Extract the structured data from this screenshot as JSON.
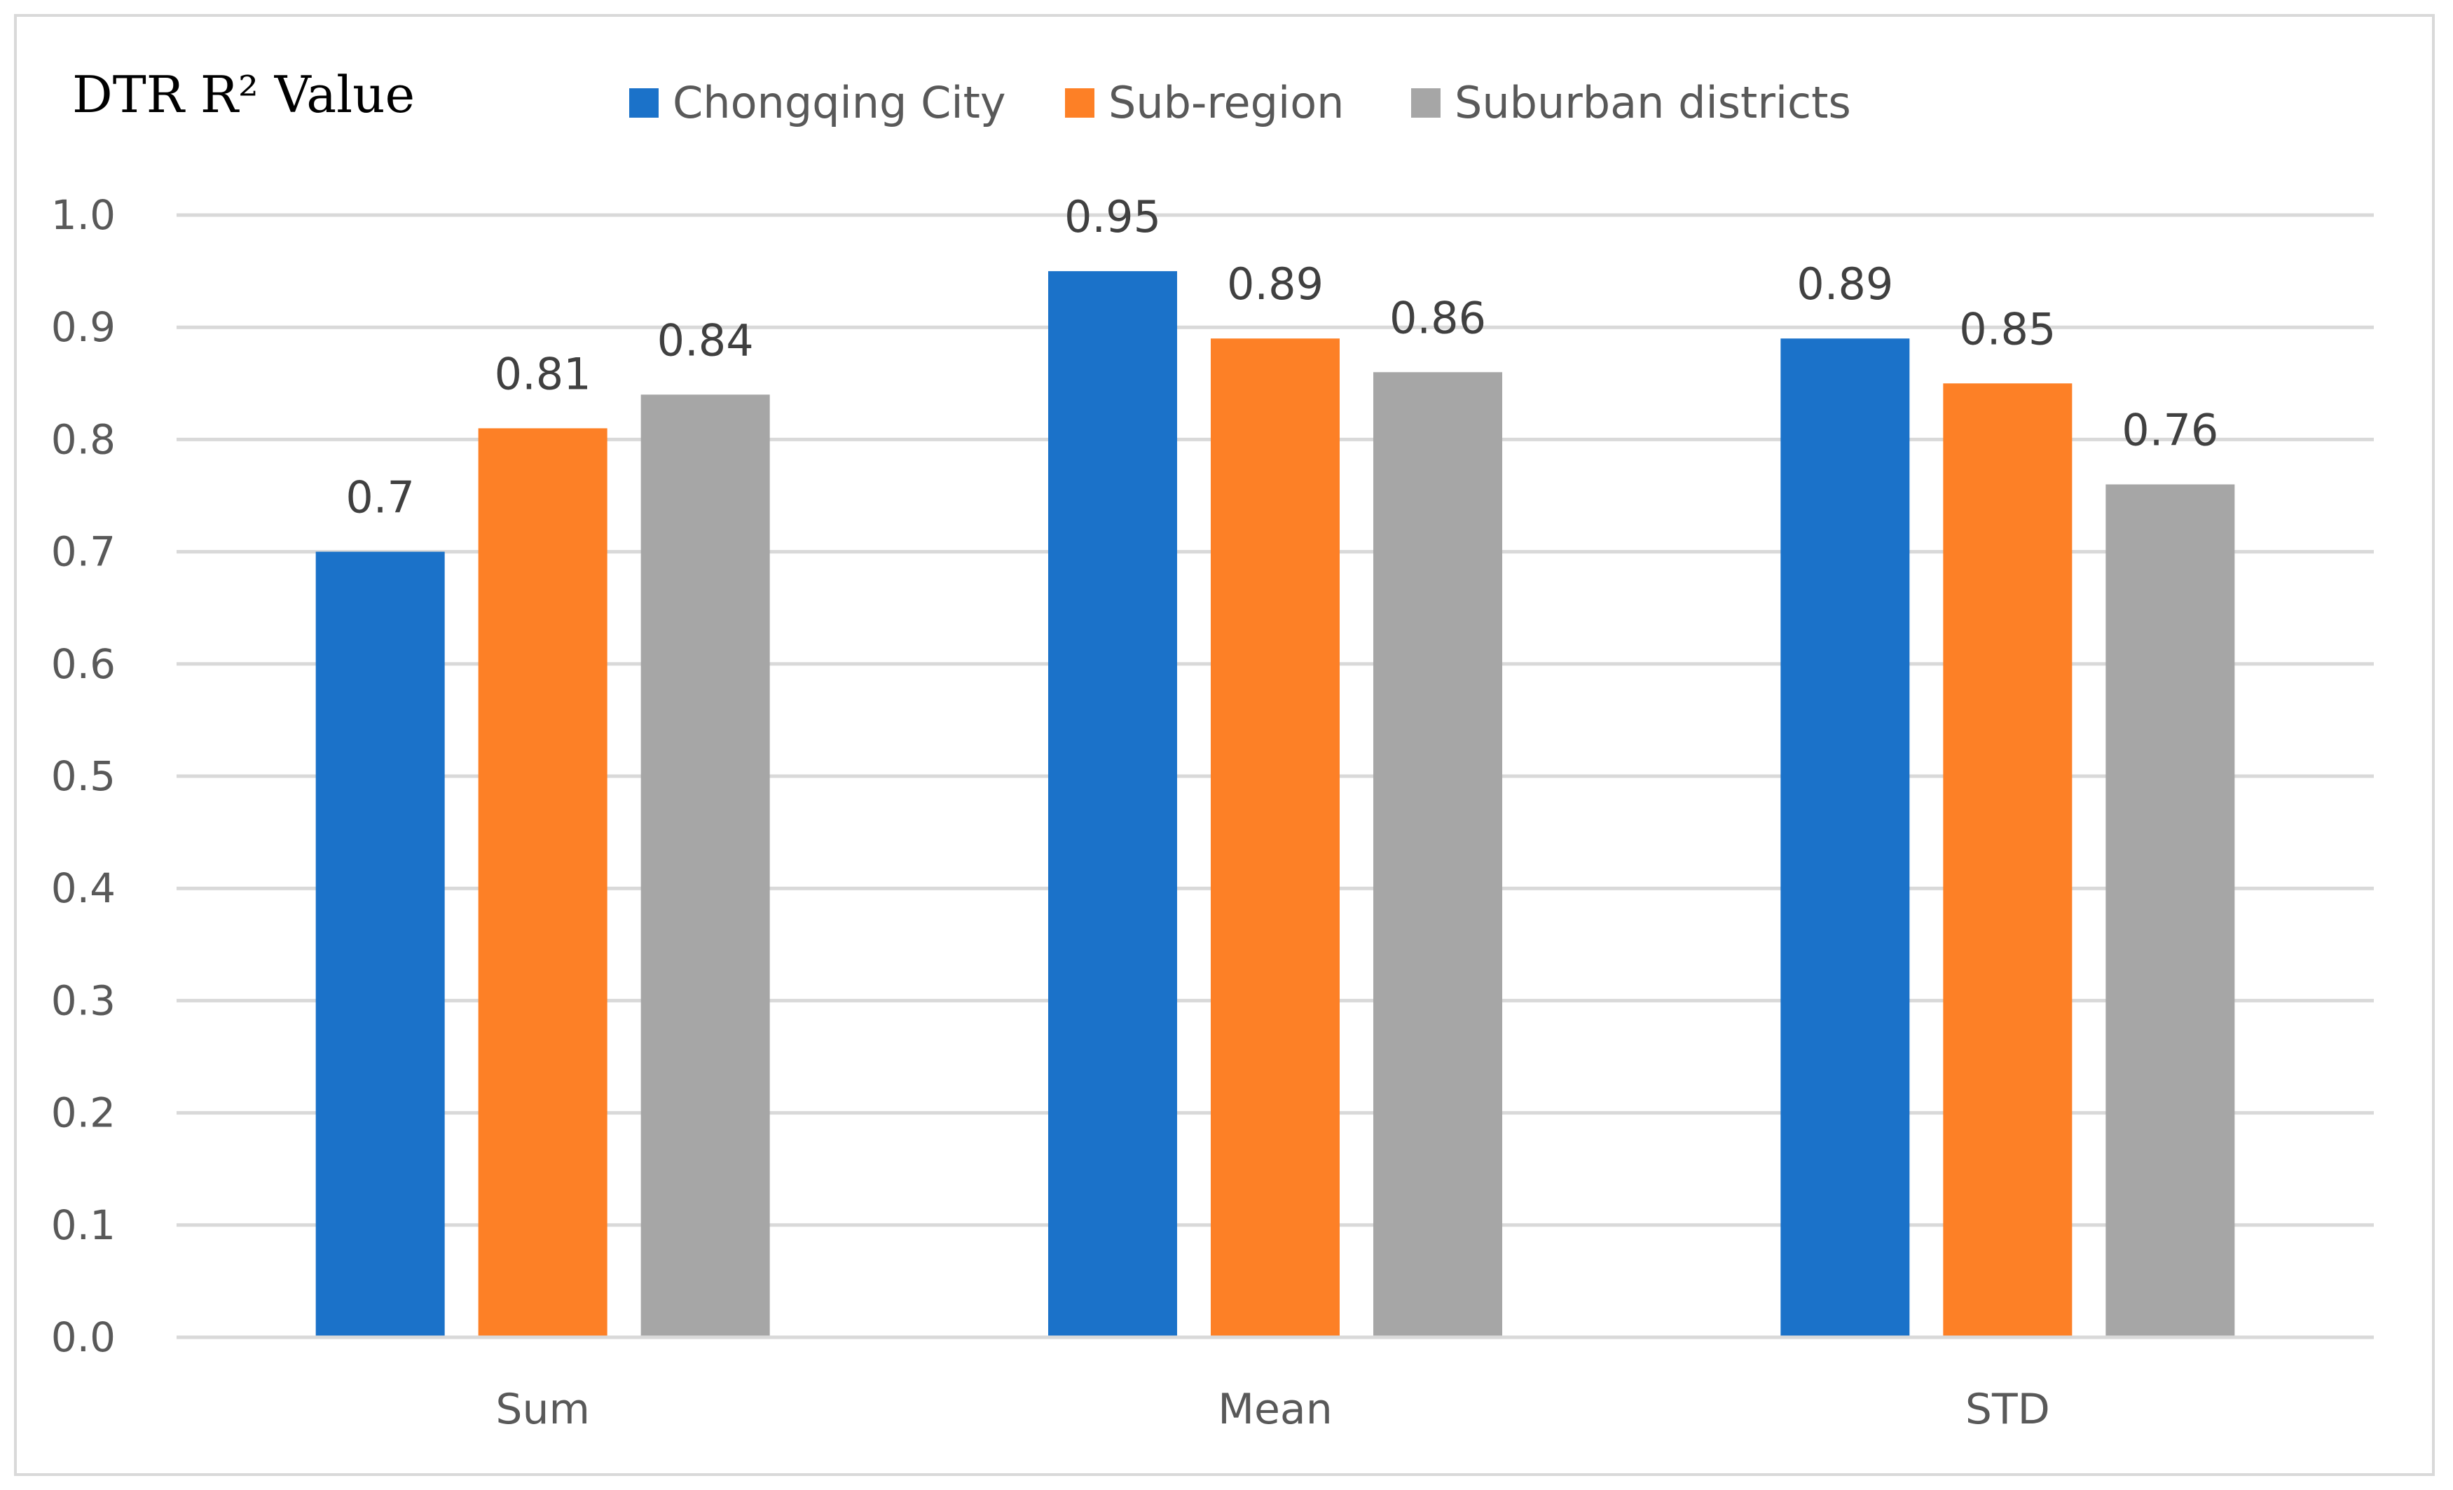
{
  "chart_data": {
    "type": "bar",
    "title": "",
    "ylabel": "DTR R² Value",
    "xlabel": "",
    "ylim": [
      0,
      1.0
    ],
    "yticks": [
      "0.0",
      "0.1",
      "0.2",
      "0.3",
      "0.4",
      "0.5",
      "0.6",
      "0.7",
      "0.8",
      "0.9",
      "1.0"
    ],
    "grid": true,
    "legend_position": "top",
    "categories": [
      "Sum",
      "Mean",
      "STD"
    ],
    "series": [
      {
        "name": "Chongqing City",
        "color": "#1b72c9",
        "values": [
          0.7,
          0.95,
          0.89
        ],
        "labels": [
          "0.7",
          "0.95",
          "0.89"
        ]
      },
      {
        "name": "Sub-region",
        "color": "#fd8026",
        "values": [
          0.81,
          0.89,
          0.85
        ],
        "labels": [
          "0.81",
          "0.89",
          "0.85"
        ]
      },
      {
        "name": "Suburban districts",
        "color": "#a6a6a6",
        "values": [
          0.84,
          0.86,
          0.76
        ],
        "labels": [
          "0.84",
          "0.86",
          "0.76"
        ]
      }
    ]
  }
}
